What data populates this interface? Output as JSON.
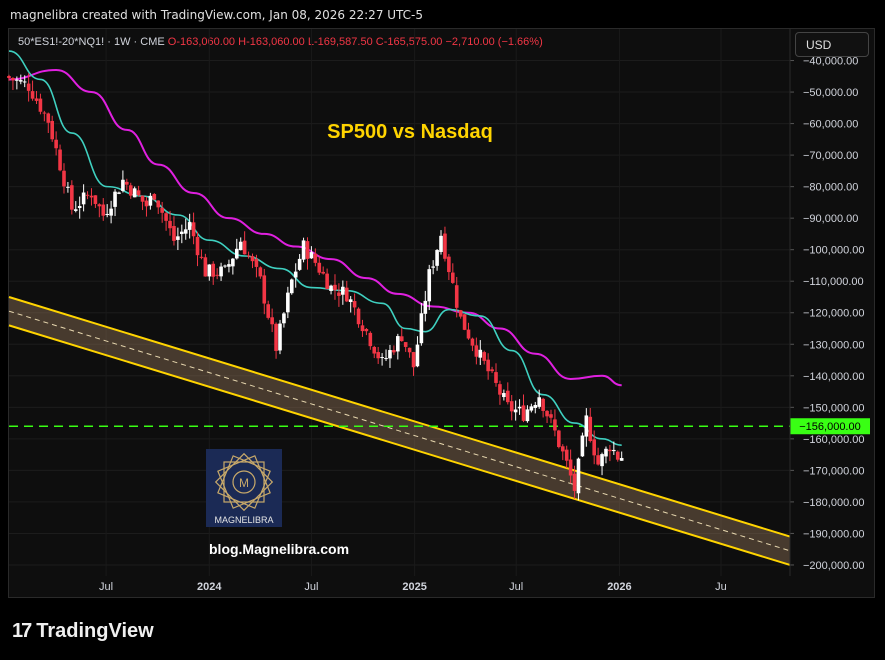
{
  "header": {
    "text": "magnelibra created with TradingView.com, Jan 08, 2026 22:27 UTC-5"
  },
  "legend": {
    "symbol": "50*ES1!-20*NQ1! · 1W · CME",
    "open": "O-163,060.00",
    "high": "H-163,060.00",
    "low": "L-169,587.50",
    "close": "C-165,575.00",
    "change": "−2,710.00 (−1.66%)"
  },
  "currency_button": "USD",
  "footer_brand": "TradingView",
  "colors": {
    "up": "#ffffff",
    "down": "#f23645",
    "ma_fast": "#3fd0c0",
    "ma_slow": "#e020e0",
    "channel": "#ffd400",
    "level_line": "#39ff14",
    "title": "#ffd400"
  },
  "chart_data": {
    "type": "candlestick",
    "title": "SP500 vs Nasdaq",
    "watermark_logo": "MAGNELIBRA",
    "watermark_url": "blog.Magnelibra.com",
    "y_ticks": [
      -40000,
      -50000,
      -60000,
      -70000,
      -80000,
      -90000,
      -100000,
      -110000,
      -120000,
      -130000,
      -140000,
      -150000,
      -160000,
      -170000,
      -180000,
      -190000,
      -200000
    ],
    "y_tick_labels": [
      "−40,000.00",
      "−50,000.00",
      "−60,000.00",
      "−70,000.00",
      "−80,000.00",
      "−90,000.00",
      "−100,000.00",
      "−110,000.00",
      "−120,000.00",
      "−130,000.00",
      "−140,000.00",
      "−150,000.00",
      "−160,000.00",
      "−170,000.00",
      "−180,000.00",
      "−190,000.00",
      "−200,000.00"
    ],
    "ylim": [
      -203500,
      -30000
    ],
    "x_range": [
      "2023-01-09",
      "2026-11-01"
    ],
    "x_ticks": [
      {
        "date": "2023-07-01",
        "label": "Jul"
      },
      {
        "date": "2024-01-01",
        "label": "2024"
      },
      {
        "date": "2024-07-01",
        "label": "Jul"
      },
      {
        "date": "2025-01-01",
        "label": "2025"
      },
      {
        "date": "2025-07-01",
        "label": "Jul"
      },
      {
        "date": "2026-01-01",
        "label": "2026"
      },
      {
        "date": "2026-07-01",
        "label": "Ju"
      }
    ],
    "horizontal_level": {
      "value": -156000,
      "label": "−156,000.00"
    },
    "channel": {
      "upper": [
        [
          "2023-01-09",
          -115000
        ],
        [
          "2026-11-01",
          -191000
        ]
      ],
      "mid": [
        [
          "2023-01-09",
          -119500
        ],
        [
          "2026-11-01",
          -195500
        ]
      ],
      "lower": [
        [
          "2023-01-09",
          -124000
        ],
        [
          "2026-11-01",
          -200000
        ]
      ]
    },
    "anchors": [
      [
        "2023-01-09",
        -45000
      ],
      [
        "2023-02-20",
        -48000
      ],
      [
        "2023-03-27",
        -59000
      ],
      [
        "2023-05-08",
        -87000
      ],
      [
        "2023-06-12",
        -82000
      ],
      [
        "2023-07-03",
        -89000
      ],
      [
        "2023-08-07",
        -78000
      ],
      [
        "2023-09-18",
        -86000
      ],
      [
        "2023-10-02",
        -82000
      ],
      [
        "2023-11-06",
        -97000
      ],
      [
        "2023-12-04",
        -92000
      ],
      [
        "2024-01-01",
        -107000
      ],
      [
        "2024-02-05",
        -107000
      ],
      [
        "2024-03-04",
        -97000
      ],
      [
        "2024-04-08",
        -110000
      ],
      [
        "2024-05-06",
        -131000
      ],
      [
        "2024-06-03",
        -110000
      ],
      [
        "2024-06-24",
        -99000
      ],
      [
        "2024-07-15",
        -104000
      ],
      [
        "2024-08-12",
        -112000
      ],
      [
        "2024-09-09",
        -114000
      ],
      [
        "2024-10-14",
        -126000
      ],
      [
        "2024-11-11",
        -136000
      ],
      [
        "2024-12-16",
        -127000
      ],
      [
        "2025-01-06",
        -137000
      ],
      [
        "2025-02-03",
        -108000
      ],
      [
        "2025-02-24",
        -95000
      ],
      [
        "2025-03-31",
        -122000
      ],
      [
        "2025-05-05",
        -134000
      ],
      [
        "2025-06-23",
        -150000
      ],
      [
        "2025-07-21",
        -152000
      ],
      [
        "2025-08-18",
        -146000
      ],
      [
        "2025-09-15",
        -158000
      ],
      [
        "2025-10-06",
        -168000
      ],
      [
        "2025-10-20",
        -176000
      ],
      [
        "2025-11-10",
        -154000
      ],
      [
        "2025-12-01",
        -168000
      ],
      [
        "2025-12-22",
        -162000
      ],
      [
        "2026-01-05",
        -165575
      ]
    ],
    "ma_fast_points": [
      [
        "2023-01-09",
        -37000
      ],
      [
        "2023-03-06",
        -46000
      ],
      [
        "2023-05-01",
        -63000
      ],
      [
        "2023-07-03",
        -80000
      ],
      [
        "2023-09-04",
        -83000
      ],
      [
        "2023-11-06",
        -89000
      ],
      [
        "2024-01-01",
        -97000
      ],
      [
        "2024-03-04",
        -102000
      ],
      [
        "2024-05-06",
        -106000
      ],
      [
        "2024-07-01",
        -112000
      ],
      [
        "2024-09-02",
        -113000
      ],
      [
        "2024-11-04",
        -117000
      ],
      [
        "2024-12-16",
        -125000
      ],
      [
        "2025-01-20",
        -126000
      ],
      [
        "2025-03-03",
        -119000
      ],
      [
        "2025-04-28",
        -121000
      ],
      [
        "2025-06-23",
        -132000
      ],
      [
        "2025-08-18",
        -146000
      ],
      [
        "2025-10-13",
        -155000
      ],
      [
        "2025-12-01",
        -160000
      ],
      [
        "2026-01-05",
        -162000
      ]
    ],
    "ma_slow_points": [
      [
        "2023-01-09",
        -46000
      ],
      [
        "2023-04-03",
        -43000
      ],
      [
        "2023-06-05",
        -50000
      ],
      [
        "2023-08-07",
        -62000
      ],
      [
        "2023-10-02",
        -73000
      ],
      [
        "2023-12-04",
        -82000
      ],
      [
        "2024-02-05",
        -90000
      ],
      [
        "2024-04-08",
        -95000
      ],
      [
        "2024-06-03",
        -99000
      ],
      [
        "2024-08-05",
        -103000
      ],
      [
        "2024-10-07",
        -109000
      ],
      [
        "2024-12-02",
        -114000
      ],
      [
        "2025-02-03",
        -118000
      ],
      [
        "2025-04-07",
        -120000
      ],
      [
        "2025-06-02",
        -125000
      ],
      [
        "2025-08-04",
        -133000
      ],
      [
        "2025-10-06",
        -141000
      ],
      [
        "2025-12-01",
        -140000
      ],
      [
        "2026-01-05",
        -143000
      ]
    ]
  }
}
